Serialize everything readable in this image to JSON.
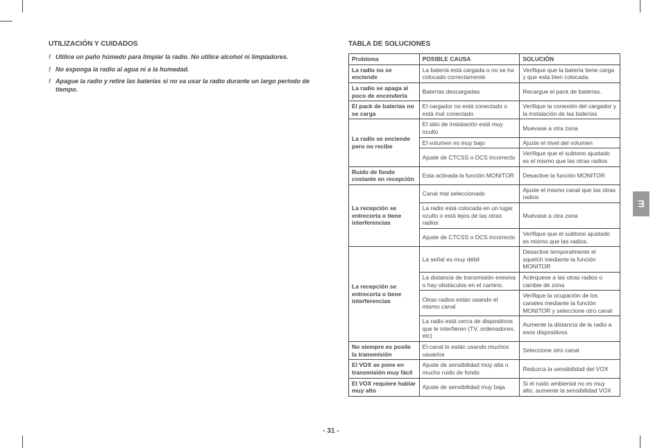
{
  "colors": {
    "text": "#444444",
    "background": "#ffffff",
    "tab_bg": "#9a9a9a",
    "tab_text": "#ffffff",
    "border": "#444444"
  },
  "typography": {
    "heading_pt": 10,
    "body_pt": 9,
    "table_pt": 8.5,
    "page_num_pt": 10
  },
  "left": {
    "heading": "UTILIZACIÓN Y CUIDADOS",
    "notes": [
      "Utilice un paño húmedo para limpiar la radio. No utilice alcohol ni limpiadores.",
      "No exponga la radio al agua ni a la humedad.",
      "Apague la radio y retire las baterías si no va usar la radio durante un largo periodo de tiempo."
    ]
  },
  "right": {
    "heading": "TABLA DE SOLUCIONES",
    "columns": [
      "Problema",
      "POSIBLE CAUSA",
      "SOLUCIÓN"
    ],
    "groups": [
      {
        "problem": "La radio no se enciende",
        "rows": [
          {
            "cause": "La batería está cargada o no se ha colocado correctamente",
            "solution": "Verifique que la batería tiene carga y que esta bien colocada."
          }
        ]
      },
      {
        "problem": "La radio se apaga al poco de encenderla",
        "rows": [
          {
            "cause": "Baterías descargadas",
            "solution": "Recargue el pack de baterías."
          }
        ]
      },
      {
        "problem": "El pack de baterías no se carga",
        "rows": [
          {
            "cause": "El cargador no está conectado o está mal conectado",
            "solution": "Verifique la conexión del cargador y la instalación de las baterías"
          }
        ]
      },
      {
        "problem": "La radio se enciende pero no recibe",
        "rows": [
          {
            "cause": "El sitio de instalación está muy oculto",
            "solution": "Muévase a otra zona"
          },
          {
            "cause": "El volumen es muy bajo",
            "solution": "Ajuste el nivel del volumen"
          },
          {
            "cause": "Ajuste de  CTCSS o DCS incorrecto",
            "solution": "Verifique que el subtono ajustado es el mismo que las otras radios"
          }
        ]
      },
      {
        "problem": "Ruido de fondo costante en recepción",
        "rows": [
          {
            "cause": "Esta activada la función MONITOR",
            "solution": "Desactive la función MONITOR"
          }
        ]
      },
      {
        "problem": "La recepción se entrecorta o tiene interferencias",
        "rows": [
          {
            "cause": "Canal mal seleccionado",
            "solution": "Ajuste el mismo canal que las otras radios"
          },
          {
            "cause": "La radio está colocada en un lugar oculto o está lejos de las otras radios",
            "solution": "Muévase a otra zona"
          },
          {
            "cause": "Ajuste de  CTCSS o DCS incorrecto",
            "solution": "Verifique que el subtono ajustado es mismo que las radios."
          }
        ]
      },
      {
        "problem": "La recepción se entrecorta o tiene interferencias",
        "rows": [
          {
            "cause": "La señal es muy débil",
            "solution": "Desactive temporalmente el squelch mediante la función MONITOR"
          },
          {
            "cause": "La distancia de transmisión exesiva o hay obstáculos en el camino.",
            "solution": "Acérquese a las otras radios o cambie de zona"
          },
          {
            "cause": "Otras radios están usando el mismo canal",
            "solution": "Verifique la ocupación de los canales mediante la función MONITOR y seleccione otro canal"
          },
          {
            "cause": "La radio está cerca de dispositivos que le interfieren (TV, ordenadores, etc)",
            "solution": "Aumente la distancia de la radio a esos dispositivos"
          }
        ]
      },
      {
        "problem": "No siempre es posile la transmisión",
        "rows": [
          {
            "cause": "El canal lo están usando muchos usuarios",
            "solution": "Seleccione otro canal"
          }
        ]
      },
      {
        "problem": "El VOX se pone en transmisión muy fácil",
        "rows": [
          {
            "cause": "Ajuste de sensibilidad muy alta o mucho ruido de fondo",
            "solution": "Reduzca la sensibilidad del VOX"
          }
        ]
      },
      {
        "problem": "El VOX requiere hablar muy alto",
        "rows": [
          {
            "cause": "Ajuste de sensibilidad muy baja",
            "solution": "Si el ruido ambiental no es muy alto, aumente la sensibilidad VOX"
          }
        ]
      }
    ]
  },
  "side_tab": "E",
  "page_number": "- 31 -"
}
